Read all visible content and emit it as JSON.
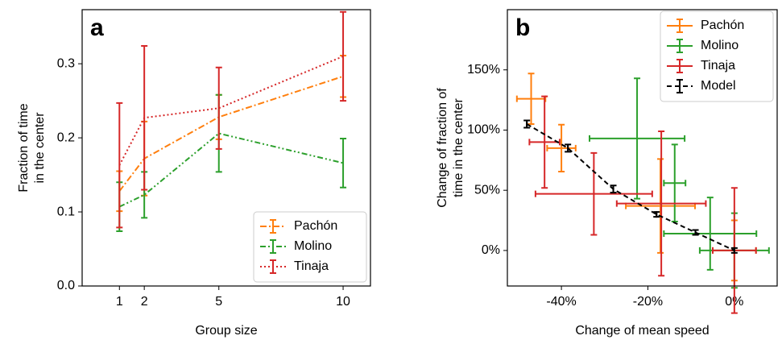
{
  "chart_data": [
    {
      "type": "line",
      "label": "a",
      "xlabel": "Group size",
      "ylabel": [
        "Fraction of time",
        "in the center"
      ],
      "x": [
        1,
        2,
        5,
        10
      ],
      "xlim": [
        -0.5,
        11.1
      ],
      "xticks": [
        1,
        2,
        5,
        10
      ],
      "ylim": [
        0,
        0.373
      ],
      "yticks": [
        {
          "value": 0,
          "label": "0.0"
        },
        0.1,
        0.2,
        0.3
      ],
      "legend": "lower right",
      "series": [
        {
          "name": "Pachón",
          "color": "#ff7f0e",
          "linestyle": "dashdot",
          "values": [
            0.128,
            0.172,
            0.228,
            0.283
          ],
          "yerr": [
            0.027,
            0.05,
            0.03,
            0.028
          ]
        },
        {
          "name": "Molino",
          "color": "#2ca02c",
          "linestyle": "dashdotdot",
          "values": [
            0.107,
            0.123,
            0.206,
            0.166
          ],
          "yerr": [
            0.033,
            0.031,
            0.052,
            0.033
          ]
        },
        {
          "name": "Tinaja",
          "color": "#d62728",
          "linestyle": "dotted",
          "values": [
            0.163,
            0.227,
            0.24,
            0.31
          ],
          "yerr": [
            0.084,
            0.097,
            0.055,
            0.06
          ]
        }
      ]
    },
    {
      "type": "scatter",
      "label": "b",
      "xlabel": "Change of mean speed",
      "ylabel": [
        "Change of fraction of",
        "time in the center"
      ],
      "xlim": [
        -52.5,
        9.9
      ],
      "xticks": [
        {
          "value": -40,
          "label": "-40%"
        },
        {
          "value": -20,
          "label": "-20%"
        },
        {
          "value": 0,
          "label": "0%"
        }
      ],
      "ylim": [
        -29.5,
        200
      ],
      "yticks": [
        {
          "value": 0,
          "label": "0%"
        },
        {
          "value": 50,
          "label": "50%"
        },
        {
          "value": 100,
          "label": "100%"
        },
        {
          "value": 150,
          "label": "150%"
        }
      ],
      "legend": "upper right",
      "series": [
        {
          "name": "Pachón",
          "color": "#ff7f0e",
          "linestyle": "none",
          "x": [
            -47,
            -40,
            -17.1,
            0
          ],
          "xerr": [
            3.3,
            3.3,
            8,
            5
          ],
          "values": [
            126,
            85,
            37,
            0
          ],
          "yerr": [
            21,
            19.5,
            39,
            25
          ]
        },
        {
          "name": "Molino",
          "color": "#2ca02c",
          "linestyle": "none",
          "x": [
            -22.5,
            -13.8,
            -5.6,
            0
          ],
          "xerr": [
            11,
            2.5,
            10.7,
            8
          ],
          "values": [
            93,
            56,
            14,
            0
          ],
          "yerr": [
            50,
            32,
            30,
            31
          ]
        },
        {
          "name": "Tinaja",
          "color": "#d62728",
          "linestyle": "none",
          "x": [
            -43.9,
            -32.5,
            -16.9,
            0
          ],
          "xerr": [
            3.5,
            13.5,
            10.3,
            5
          ],
          "values": [
            90,
            47,
            39,
            0
          ],
          "yerr": [
            38,
            34,
            60,
            52
          ]
        },
        {
          "name": "Model",
          "color": "#000000",
          "linestyle": "dashed",
          "x": [
            -48,
            -38.5,
            -28,
            -18,
            -9,
            0
          ],
          "xerr": [
            0,
            0,
            0,
            0,
            0,
            0
          ],
          "values": [
            105,
            85,
            51,
            30,
            15,
            0
          ],
          "yerr": [
            3,
            3,
            3,
            2,
            2,
            2
          ]
        }
      ]
    }
  ]
}
